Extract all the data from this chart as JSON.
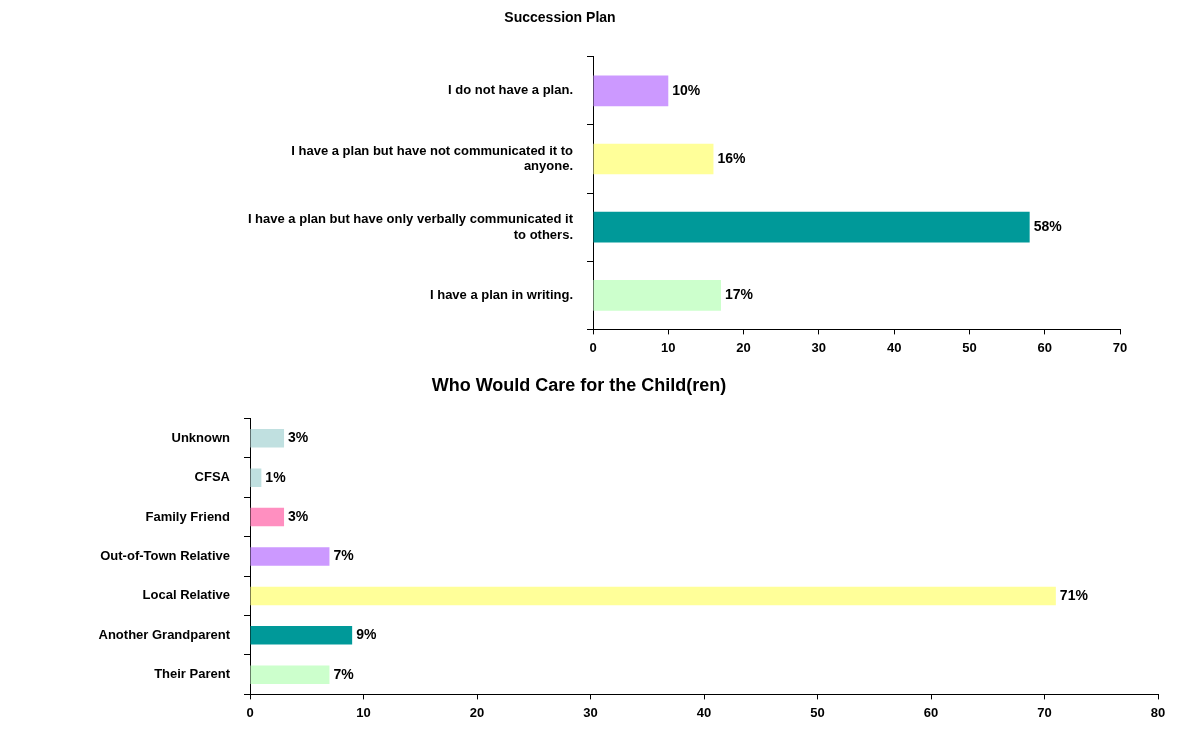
{
  "chart_data": [
    {
      "type": "bar",
      "orientation": "horizontal",
      "title": "Succession Plan",
      "categories": [
        "I do not have a plan.",
        "I have a plan but have not communicated it to anyone.",
        "I have a plan but have only verbally communicated it to others.",
        "I have a plan in writing."
      ],
      "values": [
        10,
        16,
        58,
        17
      ],
      "colors": [
        "#cc99ff",
        "#ffff99",
        "#009999",
        "#ccffcc"
      ],
      "value_labels": [
        "10%",
        "16%",
        "58%",
        "17%"
      ],
      "xlim": [
        0,
        70
      ],
      "xticks": [
        0,
        10,
        20,
        30,
        40,
        50,
        60,
        70
      ],
      "grid": false,
      "legend": false
    },
    {
      "type": "bar",
      "orientation": "horizontal",
      "title": "Who Would Care for the Child(ren)",
      "categories": [
        "Unknown",
        "CFSA",
        "Family Friend",
        "Out-of-Town Relative",
        "Local Relative",
        "Another Grandparent",
        "Their Parent"
      ],
      "values": [
        3,
        1,
        3,
        7,
        71,
        9,
        7
      ],
      "colors": [
        "#c0e0e0",
        "#c0e0e0",
        "#ff8fc0",
        "#cc99ff",
        "#ffff99",
        "#009999",
        "#ccffcc"
      ],
      "value_labels": [
        "3%",
        "1%",
        "3%",
        "7%",
        "71%",
        "9%",
        "7%"
      ],
      "xlim": [
        0,
        80
      ],
      "xticks": [
        0,
        10,
        20,
        30,
        40,
        50,
        60,
        70,
        80
      ],
      "grid": false,
      "legend": false
    }
  ]
}
